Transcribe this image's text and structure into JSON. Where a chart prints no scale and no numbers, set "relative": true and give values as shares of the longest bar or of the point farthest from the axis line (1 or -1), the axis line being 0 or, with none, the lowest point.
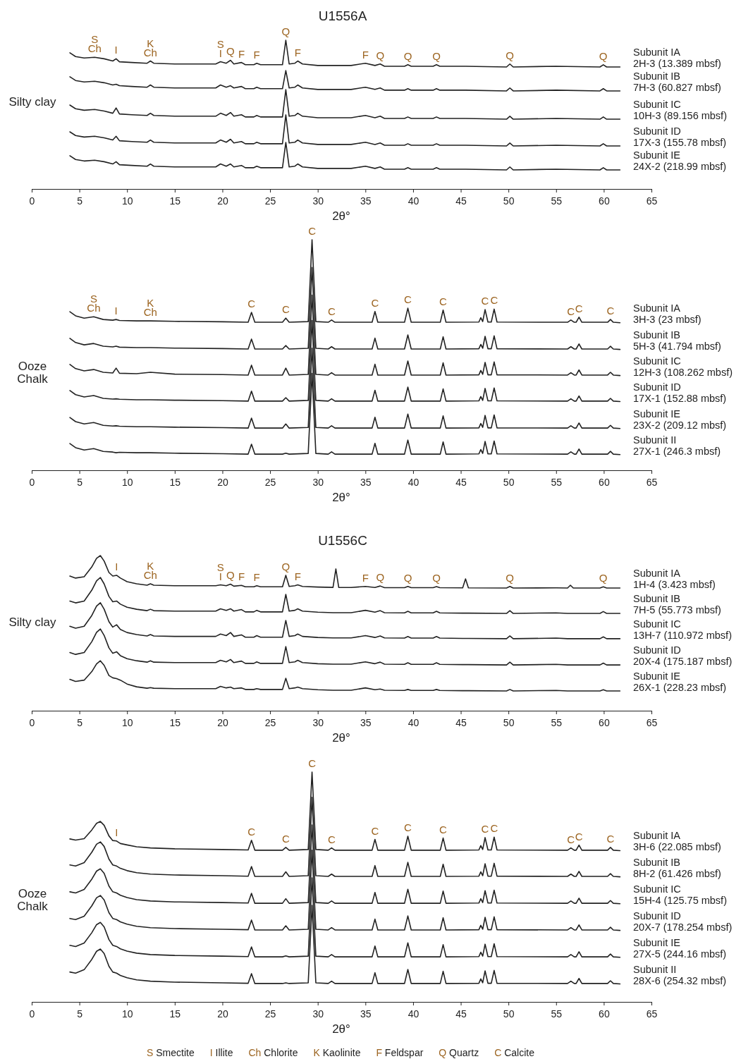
{
  "chart_data": [
    {
      "type": "line",
      "title": "U1556A",
      "xlabel": "2θ°",
      "relative": true,
      "tick_labels": "x",
      "xlim": [
        0,
        65
      ],
      "xticks": [
        0,
        5,
        10,
        15,
        20,
        25,
        30,
        35,
        40,
        45,
        50,
        55,
        60,
        65
      ],
      "x": [
        4,
        4.6,
        5.5,
        6.6,
        7.6,
        8.5,
        8.85,
        9.2,
        10.5,
        12.1,
        12.45,
        12.8,
        15,
        17.8,
        19.3,
        19.8,
        20.4,
        20.85,
        21.2,
        22.0,
        22.4,
        23.3,
        23.6,
        24.0,
        26.3,
        26.65,
        27.0,
        27.6,
        27.9,
        28.4,
        30,
        33.5,
        35.0,
        36.0,
        36.55,
        37,
        39.1,
        39.45,
        39.8,
        42.1,
        42.45,
        42.8,
        45.5,
        49.8,
        50.15,
        50.5,
        55,
        59.6,
        59.95,
        60.3,
        61.7
      ],
      "series": [
        {
          "name": "Subunit IA\n2H-3 (13.389 mbsf)",
          "color": "#222222",
          "values": [
            0.915,
            0.89,
            0.88,
            0.885,
            0.875,
            0.86,
            0.875,
            0.855,
            0.85,
            0.845,
            0.86,
            0.845,
            0.84,
            0.84,
            0.84,
            0.855,
            0.845,
            0.865,
            0.84,
            0.85,
            0.835,
            0.835,
            0.845,
            0.835,
            0.835,
            1,
            0.84,
            0.845,
            0.86,
            0.84,
            0.83,
            0.83,
            0.845,
            0.83,
            0.84,
            0.825,
            0.825,
            0.835,
            0.825,
            0.825,
            0.835,
            0.825,
            0.825,
            0.82,
            0.84,
            0.82,
            0.825,
            0.82,
            0.835,
            0.82,
            0.82
          ]
        },
        {
          "name": "Subunit IB\n7H-3 (60.827 mbsf)",
          "color": "#222222",
          "values": [
            0.754,
            0.729,
            0.719,
            0.724,
            0.714,
            0.699,
            0.704,
            0.694,
            0.689,
            0.684,
            0.699,
            0.684,
            0.679,
            0.679,
            0.679,
            0.699,
            0.684,
            0.694,
            0.679,
            0.689,
            0.674,
            0.674,
            0.684,
            0.674,
            0.674,
            0.796,
            0.679,
            0.684,
            0.699,
            0.679,
            0.669,
            0.669,
            0.684,
            0.669,
            0.679,
            0.664,
            0.664,
            0.674,
            0.664,
            0.664,
            0.674,
            0.664,
            0.664,
            0.659,
            0.679,
            0.659,
            0.664,
            0.659,
            0.674,
            0.659,
            0.659
          ]
        },
        {
          "name": "Subunit IC\n10H-3 (89.156 mbsf)",
          "color": "#222222",
          "values": [
            0.564,
            0.539,
            0.529,
            0.534,
            0.524,
            0.509,
            0.544,
            0.504,
            0.499,
            0.494,
            0.509,
            0.494,
            0.489,
            0.489,
            0.489,
            0.509,
            0.494,
            0.514,
            0.489,
            0.499,
            0.484,
            0.484,
            0.494,
            0.484,
            0.484,
            0.668,
            0.489,
            0.494,
            0.509,
            0.489,
            0.479,
            0.479,
            0.494,
            0.479,
            0.489,
            0.474,
            0.474,
            0.484,
            0.474,
            0.474,
            0.484,
            0.474,
            0.474,
            0.469,
            0.489,
            0.469,
            0.474,
            0.469,
            0.484,
            0.469,
            0.469
          ]
        },
        {
          "name": "Subunit ID\n17X-3 (155.78 mbsf)",
          "color": "#222222",
          "values": [
            0.384,
            0.359,
            0.349,
            0.354,
            0.344,
            0.329,
            0.354,
            0.324,
            0.319,
            0.314,
            0.329,
            0.314,
            0.309,
            0.309,
            0.309,
            0.329,
            0.314,
            0.334,
            0.309,
            0.319,
            0.304,
            0.304,
            0.314,
            0.304,
            0.304,
            0.498,
            0.309,
            0.314,
            0.329,
            0.309,
            0.299,
            0.299,
            0.314,
            0.299,
            0.309,
            0.294,
            0.294,
            0.304,
            0.294,
            0.294,
            0.304,
            0.294,
            0.294,
            0.289,
            0.309,
            0.289,
            0.294,
            0.289,
            0.304,
            0.289,
            0.289
          ]
        },
        {
          "name": "Subunit IE\n24X-2 (218.99 mbsf)",
          "color": "#222222",
          "values": [
            0.223,
            0.198,
            0.188,
            0.193,
            0.183,
            0.168,
            0.183,
            0.163,
            0.158,
            0.153,
            0.168,
            0.153,
            0.148,
            0.148,
            0.148,
            0.168,
            0.153,
            0.168,
            0.148,
            0.158,
            0.143,
            0.143,
            0.153,
            0.143,
            0.143,
            0.313,
            0.148,
            0.153,
            0.168,
            0.148,
            0.138,
            0.138,
            0.153,
            0.138,
            0.148,
            0.133,
            0.133,
            0.143,
            0.133,
            0.133,
            0.143,
            0.133,
            0.133,
            0.128,
            0.148,
            0.128,
            0.133,
            0.128,
            0.143,
            0.128,
            0.128
          ]
        }
      ],
      "annotations": [
        "Silty clay",
        {
          "text": "S\nCh",
          "x": 6.6,
          "y": 0.885
        },
        {
          "text": "I",
          "x": 8.85,
          "y": 0.875
        },
        {
          "text": "K\nCh",
          "x": 12.45,
          "y": 0.86
        },
        {
          "text": "S\nI",
          "x": 19.8,
          "y": 0.855
        },
        {
          "text": "Q",
          "x": 20.85,
          "y": 0.865
        },
        {
          "text": "F",
          "x": 22.0,
          "y": 0.85
        },
        {
          "text": "F",
          "x": 23.6,
          "y": 0.845
        },
        {
          "text": "Q",
          "x": 26.65,
          "y": 1
        },
        {
          "text": "F",
          "x": 27.9,
          "y": 0.86
        },
        {
          "text": "F",
          "x": 35.0,
          "y": 0.845
        },
        {
          "text": "Q",
          "x": 36.55,
          "y": 0.84
        },
        {
          "text": "Q",
          "x": 39.45,
          "y": 0.835
        },
        {
          "text": "Q",
          "x": 42.45,
          "y": 0.835
        },
        {
          "text": "Q",
          "x": 50.15,
          "y": 0.84
        },
        {
          "text": "Q",
          "x": 59.95,
          "y": 0.835
        }
      ]
    },
    {
      "type": "line",
      "xlabel": "2θ°",
      "relative": true,
      "tick_labels": "x",
      "xlim": [
        0,
        65
      ],
      "xticks": [
        0,
        5,
        10,
        15,
        20,
        25,
        30,
        35,
        40,
        45,
        50,
        55,
        60,
        65
      ],
      "x": [
        4,
        4.6,
        5.5,
        6.5,
        7.5,
        8.5,
        8.85,
        9.2,
        11,
        12.45,
        15,
        20,
        22.7,
        23.05,
        23.4,
        26.3,
        26.65,
        27,
        29.0,
        29.4,
        29.8,
        31.1,
        31.45,
        31.8,
        35.7,
        36.0,
        36.3,
        39.1,
        39.45,
        39.8,
        42.85,
        43.15,
        43.45,
        46.9,
        47.1,
        47.3,
        47.55,
        47.85,
        48.2,
        48.5,
        48.8,
        56.2,
        56.55,
        56.9,
        57.1,
        57.4,
        57.7,
        60.4,
        60.7,
        61.0,
        61.7
      ],
      "series": [
        {
          "name": "Subunit IA\n3H-3 (23 mbsf)",
          "color": "#222222",
          "values": [
            0.688,
            0.67,
            0.66,
            0.666,
            0.654,
            0.651,
            0.654,
            0.65,
            0.648,
            0.648,
            0.646,
            0.644,
            0.642,
            0.685,
            0.642,
            0.642,
            0.66,
            0.642,
            0.645,
            1,
            0.645,
            0.642,
            0.652,
            0.642,
            0.642,
            0.689,
            0.642,
            0.642,
            0.703,
            0.642,
            0.642,
            0.695,
            0.642,
            0.643,
            0.662,
            0.645,
            0.697,
            0.643,
            0.643,
            0.699,
            0.643,
            0.642,
            0.652,
            0.642,
            0.642,
            0.664,
            0.642,
            0.642,
            0.654,
            0.642,
            0.64
          ]
        },
        {
          "name": "Subunit IB\n5H-3 (41.794 mbsf)",
          "color": "#222222",
          "values": [
            0.572,
            0.554,
            0.544,
            0.55,
            0.538,
            0.535,
            0.538,
            0.534,
            0.532,
            0.532,
            0.53,
            0.528,
            0.526,
            0.569,
            0.526,
            0.526,
            0.541,
            0.526,
            0.529,
            0.88,
            0.529,
            0.526,
            0.536,
            0.526,
            0.526,
            0.573,
            0.526,
            0.526,
            0.587,
            0.526,
            0.526,
            0.579,
            0.526,
            0.527,
            0.546,
            0.529,
            0.581,
            0.527,
            0.527,
            0.583,
            0.527,
            0.526,
            0.536,
            0.526,
            0.526,
            0.548,
            0.526,
            0.526,
            0.538,
            0.526,
            0.524
          ]
        },
        {
          "name": "Subunit IC\n12H-3 (108.262 mbsf)",
          "color": "#222222",
          "values": [
            0.459,
            0.441,
            0.431,
            0.437,
            0.425,
            0.422,
            0.443,
            0.421,
            0.419,
            0.425,
            0.417,
            0.415,
            0.413,
            0.456,
            0.413,
            0.413,
            0.443,
            0.413,
            0.416,
            0.76,
            0.416,
            0.413,
            0.423,
            0.413,
            0.413,
            0.46,
            0.413,
            0.413,
            0.474,
            0.413,
            0.413,
            0.466,
            0.413,
            0.414,
            0.433,
            0.416,
            0.468,
            0.414,
            0.414,
            0.47,
            0.414,
            0.413,
            0.423,
            0.413,
            0.413,
            0.435,
            0.413,
            0.413,
            0.425,
            0.413,
            0.411
          ]
        },
        {
          "name": "Subunit ID\n17X-1 (152.88 mbsf)",
          "color": "#222222",
          "values": [
            0.346,
            0.328,
            0.318,
            0.324,
            0.312,
            0.309,
            0.31,
            0.308,
            0.306,
            0.306,
            0.304,
            0.302,
            0.3,
            0.343,
            0.3,
            0.3,
            0.315,
            0.3,
            0.303,
            0.65,
            0.303,
            0.3,
            0.31,
            0.3,
            0.3,
            0.347,
            0.3,
            0.3,
            0.361,
            0.3,
            0.3,
            0.353,
            0.3,
            0.301,
            0.32,
            0.303,
            0.355,
            0.301,
            0.301,
            0.357,
            0.301,
            0.3,
            0.31,
            0.3,
            0.3,
            0.322,
            0.3,
            0.3,
            0.312,
            0.3,
            0.298
          ]
        },
        {
          "name": "Subunit IE\n23X-2 (209.12 mbsf)",
          "color": "#222222",
          "values": [
            0.229,
            0.211,
            0.201,
            0.207,
            0.195,
            0.192,
            0.193,
            0.191,
            0.189,
            0.189,
            0.187,
            0.185,
            0.183,
            0.226,
            0.183,
            0.183,
            0.201,
            0.183,
            0.186,
            0.53,
            0.186,
            0.183,
            0.193,
            0.183,
            0.183,
            0.23,
            0.183,
            0.183,
            0.244,
            0.183,
            0.183,
            0.236,
            0.183,
            0.184,
            0.203,
            0.186,
            0.238,
            0.184,
            0.184,
            0.24,
            0.184,
            0.183,
            0.193,
            0.183,
            0.183,
            0.205,
            0.183,
            0.183,
            0.195,
            0.183,
            0.181
          ]
        },
        {
          "name": "Subunit II\n27X-1 (246.3 mbsf)",
          "color": "#222222",
          "values": [
            0.116,
            0.098,
            0.088,
            0.094,
            0.082,
            0.079,
            0.076,
            0.078,
            0.076,
            0.076,
            0.074,
            0.072,
            0.07,
            0.113,
            0.07,
            0.07,
            0.074,
            0.07,
            0.073,
            0.42,
            0.073,
            0.07,
            0.08,
            0.07,
            0.07,
            0.117,
            0.07,
            0.07,
            0.131,
            0.07,
            0.07,
            0.123,
            0.07,
            0.071,
            0.09,
            0.073,
            0.125,
            0.071,
            0.071,
            0.127,
            0.071,
            0.07,
            0.08,
            0.07,
            0.07,
            0.092,
            0.07,
            0.07,
            0.082,
            0.07,
            0.068
          ]
        }
      ],
      "annotations": [
        "Ooze\nChalk",
        {
          "text": "S\nCh",
          "x": 6.5,
          "y": 0.666
        },
        {
          "text": "I",
          "x": 8.85,
          "y": 0.654
        },
        {
          "text": "K\nCh",
          "x": 12.45,
          "y": 0.648
        },
        {
          "text": "C",
          "x": 23.05,
          "y": 0.685
        },
        {
          "text": "C",
          "x": 26.65,
          "y": 0.66
        },
        {
          "text": "C",
          "x": 29.4,
          "y": 1
        },
        {
          "text": "C",
          "x": 31.45,
          "y": 0.652
        },
        {
          "text": "C",
          "x": 36.0,
          "y": 0.689
        },
        {
          "text": "C",
          "x": 39.45,
          "y": 0.703
        },
        {
          "text": "C",
          "x": 43.15,
          "y": 0.695
        },
        {
          "text": "C",
          "x": 47.55,
          "y": 0.697
        },
        {
          "text": "C",
          "x": 48.5,
          "y": 0.699
        },
        {
          "text": "C",
          "x": 56.55,
          "y": 0.652
        },
        {
          "text": "C",
          "x": 57.4,
          "y": 0.664
        },
        {
          "text": "C",
          "x": 60.7,
          "y": 0.654
        }
      ]
    },
    {
      "type": "line",
      "title": "U1556C",
      "xlabel": "2θ°",
      "relative": true,
      "tick_labels": "x",
      "xlim": [
        0,
        65
      ],
      "xticks": [
        0,
        5,
        10,
        15,
        20,
        25,
        30,
        35,
        40,
        45,
        50,
        55,
        60,
        65
      ],
      "x": [
        4,
        4.6,
        5.5,
        6.3,
        6.8,
        7.2,
        7.6,
        8.1,
        8.5,
        8.9,
        9.3,
        10,
        11,
        12.1,
        12.45,
        12.8,
        15,
        17.8,
        19.3,
        19.8,
        20.4,
        20.85,
        21.2,
        22.0,
        22.4,
        23.3,
        23.6,
        24.0,
        26.3,
        26.65,
        27.0,
        27.6,
        27.9,
        28.4,
        30,
        31.6,
        31.9,
        32.2,
        33.5,
        35.0,
        36.0,
        36.55,
        37,
        39.1,
        39.45,
        39.8,
        42.1,
        42.45,
        42.8,
        45.2,
        45.5,
        45.8,
        49.8,
        50.15,
        50.5,
        55,
        56.2,
        56.5,
        56.8,
        59.6,
        59.95,
        60.3,
        61.7
      ],
      "series": [
        {
          "name": "Subunit IA\n1H-4 (3.423 mbsf)",
          "color": "#222222",
          "values": [
            0.868,
            0.855,
            0.864,
            0.927,
            0.982,
            1,
            0.964,
            0.891,
            0.868,
            0.873,
            0.855,
            0.832,
            0.818,
            0.809,
            0.818,
            0.809,
            0.806,
            0.806,
            0.806,
            0.811,
            0.806,
            0.816,
            0.803,
            0.808,
            0.799,
            0.799,
            0.806,
            0.799,
            0.799,
            0.873,
            0.801,
            0.806,
            0.811,
            0.801,
            0.797,
            0.795,
            0.914,
            0.795,
            0.794,
            0.801,
            0.794,
            0.804,
            0.793,
            0.793,
            0.801,
            0.793,
            0.793,
            0.8,
            0.793,
            0.792,
            0.85,
            0.792,
            0.791,
            0.801,
            0.791,
            0.792,
            0.791,
            0.809,
            0.791,
            0.791,
            0.799,
            0.791,
            0.791
          ]
        },
        {
          "name": "Subunit IB\n7H-5 (55.773 mbsf)",
          "color": "#222222",
          "values": [
            0.707,
            0.695,
            0.707,
            0.777,
            0.837,
            0.859,
            0.817,
            0.737,
            0.702,
            0.707,
            0.687,
            0.667,
            0.654,
            0.645,
            0.654,
            0.645,
            0.642,
            0.642,
            0.642,
            0.657,
            0.647,
            0.657,
            0.642,
            0.652,
            0.637,
            0.637,
            0.647,
            0.637,
            0.637,
            0.75,
            0.642,
            0.647,
            0.657,
            0.642,
            0.635,
            0.632,
            0.632,
            0.632,
            0.632,
            0.647,
            0.635,
            0.645,
            0.632,
            0.631,
            0.641,
            0.631,
            0.631,
            0.641,
            0.631,
            0.629,
            0.629,
            0.629,
            0.627,
            0.645,
            0.627,
            0.631,
            0.627,
            0.627,
            0.627,
            0.627,
            0.639,
            0.627,
            0.627
          ]
        },
        {
          "name": "Subunit IC\n13H-7 (110.972 mbsf)",
          "color": "#222222",
          "values": [
            0.544,
            0.532,
            0.544,
            0.614,
            0.674,
            0.696,
            0.654,
            0.574,
            0.539,
            0.554,
            0.524,
            0.504,
            0.491,
            0.482,
            0.491,
            0.482,
            0.479,
            0.479,
            0.479,
            0.494,
            0.484,
            0.504,
            0.479,
            0.489,
            0.474,
            0.474,
            0.484,
            0.474,
            0.474,
            0.582,
            0.479,
            0.484,
            0.494,
            0.479,
            0.472,
            0.469,
            0.469,
            0.469,
            0.469,
            0.484,
            0.472,
            0.482,
            0.469,
            0.468,
            0.478,
            0.468,
            0.468,
            0.478,
            0.468,
            0.466,
            0.466,
            0.466,
            0.464,
            0.482,
            0.464,
            0.468,
            0.464,
            0.464,
            0.464,
            0.464,
            0.476,
            0.464,
            0.464
          ]
        },
        {
          "name": "Subunit ID\n20X-4 (175.187 mbsf)",
          "color": "#222222",
          "values": [
            0.375,
            0.363,
            0.375,
            0.445,
            0.505,
            0.527,
            0.485,
            0.405,
            0.37,
            0.38,
            0.355,
            0.335,
            0.322,
            0.313,
            0.322,
            0.313,
            0.31,
            0.31,
            0.31,
            0.325,
            0.315,
            0.33,
            0.31,
            0.32,
            0.305,
            0.305,
            0.315,
            0.305,
            0.305,
            0.413,
            0.31,
            0.315,
            0.325,
            0.31,
            0.303,
            0.3,
            0.3,
            0.3,
            0.3,
            0.315,
            0.303,
            0.313,
            0.3,
            0.299,
            0.309,
            0.299,
            0.299,
            0.309,
            0.299,
            0.297,
            0.297,
            0.297,
            0.295,
            0.313,
            0.295,
            0.299,
            0.295,
            0.295,
            0.295,
            0.295,
            0.307,
            0.295,
            0.295
          ]
        },
        {
          "name": "Subunit IE\n26X-1 (228.23 mbsf)",
          "color": "#222222",
          "values": [
            0.202,
            0.189,
            0.197,
            0.252,
            0.302,
            0.322,
            0.292,
            0.227,
            0.212,
            0.207,
            0.197,
            0.172,
            0.154,
            0.145,
            0.149,
            0.145,
            0.142,
            0.142,
            0.142,
            0.157,
            0.147,
            0.152,
            0.142,
            0.147,
            0.137,
            0.137,
            0.142,
            0.137,
            0.137,
            0.209,
            0.142,
            0.147,
            0.152,
            0.142,
            0.135,
            0.132,
            0.132,
            0.132,
            0.132,
            0.147,
            0.135,
            0.14,
            0.132,
            0.131,
            0.137,
            0.131,
            0.131,
            0.137,
            0.131,
            0.129,
            0.129,
            0.129,
            0.127,
            0.137,
            0.127,
            0.131,
            0.127,
            0.127,
            0.127,
            0.127,
            0.135,
            0.127,
            0.127
          ]
        }
      ],
      "annotations": [
        "Silty clay",
        {
          "text": "I",
          "x": 8.9,
          "y": 0.873
        },
        {
          "text": "K\nCh",
          "x": 12.45,
          "y": 0.818
        },
        {
          "text": "S\nI",
          "x": 19.8,
          "y": 0.811
        },
        {
          "text": "Q",
          "x": 20.85,
          "y": 0.816
        },
        {
          "text": "F",
          "x": 22.0,
          "y": 0.808
        },
        {
          "text": "F",
          "x": 23.6,
          "y": 0.806
        },
        {
          "text": "Q",
          "x": 26.65,
          "y": 0.873
        },
        {
          "text": "F",
          "x": 27.9,
          "y": 0.811
        },
        {
          "text": "F",
          "x": 35.0,
          "y": 0.801
        },
        {
          "text": "Q",
          "x": 36.55,
          "y": 0.804
        },
        {
          "text": "Q",
          "x": 39.45,
          "y": 0.801
        },
        {
          "text": "Q",
          "x": 42.45,
          "y": 0.8
        },
        {
          "text": "Q",
          "x": 50.15,
          "y": 0.801
        },
        {
          "text": "Q",
          "x": 59.95,
          "y": 0.799
        }
      ]
    },
    {
      "type": "line",
      "xlabel": "2θ°",
      "relative": true,
      "tick_labels": "x",
      "xlim": [
        0,
        65
      ],
      "xticks": [
        0,
        5,
        10,
        15,
        20,
        25,
        30,
        35,
        40,
        45,
        50,
        55,
        60,
        65
      ],
      "x": [
        4,
        4.6,
        5.5,
        6.3,
        6.8,
        7.2,
        7.6,
        8.1,
        8.5,
        8.9,
        9.3,
        10,
        11,
        12.45,
        15,
        20,
        22.7,
        23.05,
        23.4,
        26.3,
        26.65,
        27,
        29.0,
        29.4,
        29.8,
        31.1,
        31.45,
        31.8,
        35.7,
        36.0,
        36.3,
        39.1,
        39.45,
        39.8,
        42.85,
        43.15,
        43.45,
        46.9,
        47.1,
        47.3,
        47.55,
        47.85,
        48.2,
        48.5,
        48.8,
        56.2,
        56.55,
        56.9,
        57.1,
        57.4,
        57.7,
        60.4,
        60.7,
        61.0,
        61.7
      ],
      "series": [
        {
          "name": "Subunit IA\n3H-6 (22.085 mbsf)",
          "color": "#222222",
          "values": [
            0.709,
            0.704,
            0.71,
            0.748,
            0.777,
            0.785,
            0.768,
            0.722,
            0.702,
            0.7,
            0.689,
            0.683,
            0.675,
            0.67,
            0.666,
            0.663,
            0.661,
            0.703,
            0.66,
            0.66,
            0.672,
            0.66,
            0.663,
            1,
            0.663,
            0.66,
            0.67,
            0.66,
            0.66,
            0.707,
            0.66,
            0.66,
            0.721,
            0.66,
            0.66,
            0.713,
            0.66,
            0.661,
            0.68,
            0.663,
            0.715,
            0.661,
            0.661,
            0.717,
            0.661,
            0.66,
            0.67,
            0.66,
            0.66,
            0.682,
            0.66,
            0.66,
            0.672,
            0.66,
            0.658
          ]
        },
        {
          "name": "Subunit IB\n8H-2 (61.426 mbsf)",
          "color": "#222222",
          "values": [
            0.596,
            0.591,
            0.606,
            0.651,
            0.686,
            0.696,
            0.676,
            0.621,
            0.596,
            0.591,
            0.581,
            0.571,
            0.562,
            0.556,
            0.552,
            0.549,
            0.547,
            0.589,
            0.546,
            0.546,
            0.566,
            0.546,
            0.549,
            0.89,
            0.549,
            0.546,
            0.556,
            0.546,
            0.546,
            0.593,
            0.546,
            0.546,
            0.607,
            0.546,
            0.546,
            0.599,
            0.546,
            0.547,
            0.566,
            0.549,
            0.601,
            0.547,
            0.547,
            0.603,
            0.547,
            0.546,
            0.556,
            0.546,
            0.546,
            0.568,
            0.546,
            0.546,
            0.558,
            0.546,
            0.544
          ]
        },
        {
          "name": "Subunit IC\n15H-4 (125.75 mbsf)",
          "color": "#222222",
          "values": [
            0.479,
            0.474,
            0.489,
            0.534,
            0.569,
            0.579,
            0.559,
            0.504,
            0.479,
            0.474,
            0.464,
            0.454,
            0.445,
            0.439,
            0.435,
            0.432,
            0.43,
            0.472,
            0.429,
            0.429,
            0.449,
            0.429,
            0.432,
            0.77,
            0.432,
            0.429,
            0.439,
            0.429,
            0.429,
            0.476,
            0.429,
            0.429,
            0.49,
            0.429,
            0.429,
            0.482,
            0.429,
            0.43,
            0.449,
            0.432,
            0.484,
            0.43,
            0.43,
            0.486,
            0.43,
            0.429,
            0.439,
            0.429,
            0.429,
            0.451,
            0.429,
            0.429,
            0.441,
            0.429,
            0.427
          ]
        },
        {
          "name": "Subunit ID\n20X-7 (178.254 mbsf)",
          "color": "#222222",
          "values": [
            0.363,
            0.358,
            0.373,
            0.418,
            0.453,
            0.463,
            0.443,
            0.388,
            0.363,
            0.358,
            0.348,
            0.338,
            0.329,
            0.323,
            0.319,
            0.316,
            0.314,
            0.356,
            0.313,
            0.313,
            0.331,
            0.313,
            0.316,
            0.66,
            0.316,
            0.313,
            0.323,
            0.313,
            0.313,
            0.36,
            0.313,
            0.313,
            0.374,
            0.313,
            0.313,
            0.366,
            0.313,
            0.314,
            0.333,
            0.316,
            0.368,
            0.314,
            0.314,
            0.37,
            0.314,
            0.313,
            0.323,
            0.313,
            0.313,
            0.335,
            0.313,
            0.313,
            0.325,
            0.313,
            0.311
          ]
        },
        {
          "name": "Subunit IE\n27X-5 (244.16 mbsf)",
          "color": "#222222",
          "values": [
            0.246,
            0.241,
            0.256,
            0.301,
            0.336,
            0.346,
            0.326,
            0.271,
            0.246,
            0.241,
            0.231,
            0.221,
            0.212,
            0.206,
            0.202,
            0.199,
            0.197,
            0.239,
            0.196,
            0.196,
            0.2,
            0.196,
            0.199,
            0.54,
            0.199,
            0.196,
            0.206,
            0.196,
            0.196,
            0.243,
            0.196,
            0.196,
            0.257,
            0.196,
            0.196,
            0.249,
            0.196,
            0.197,
            0.216,
            0.199,
            0.251,
            0.197,
            0.197,
            0.253,
            0.197,
            0.196,
            0.206,
            0.196,
            0.196,
            0.218,
            0.196,
            0.196,
            0.208,
            0.196,
            0.194
          ]
        },
        {
          "name": "Subunit II\n28X-6 (254.32 mbsf)",
          "color": "#222222",
          "values": [
            0.13,
            0.125,
            0.14,
            0.185,
            0.22,
            0.23,
            0.21,
            0.155,
            0.13,
            0.125,
            0.115,
            0.105,
            0.096,
            0.09,
            0.086,
            0.083,
            0.081,
            0.123,
            0.08,
            0.08,
            0.083,
            0.08,
            0.083,
            0.42,
            0.083,
            0.08,
            0.09,
            0.08,
            0.08,
            0.127,
            0.08,
            0.08,
            0.141,
            0.08,
            0.08,
            0.133,
            0.08,
            0.081,
            0.1,
            0.083,
            0.135,
            0.081,
            0.081,
            0.137,
            0.081,
            0.08,
            0.09,
            0.08,
            0.08,
            0.102,
            0.08,
            0.08,
            0.092,
            0.08,
            0.078
          ]
        }
      ],
      "annotations": [
        "Ooze\nChalk",
        "S Smectite",
        "I Illite",
        "Ch Chlorite",
        "K Kaolinite",
        "F Feldspar",
        "Q Quartz",
        "C Calcite",
        {
          "text": "I",
          "x": 8.9,
          "y": 0.7
        },
        {
          "text": "C",
          "x": 23.05,
          "y": 0.703
        },
        {
          "text": "C",
          "x": 26.65,
          "y": 0.672
        },
        {
          "text": "C",
          "x": 29.4,
          "y": 1
        },
        {
          "text": "C",
          "x": 31.45,
          "y": 0.67
        },
        {
          "text": "C",
          "x": 36.0,
          "y": 0.707
        },
        {
          "text": "C",
          "x": 39.45,
          "y": 0.721
        },
        {
          "text": "C",
          "x": 43.15,
          "y": 0.713
        },
        {
          "text": "C",
          "x": 47.55,
          "y": 0.715
        },
        {
          "text": "C",
          "x": 48.5,
          "y": 0.717
        },
        {
          "text": "C",
          "x": 56.55,
          "y": 0.67
        },
        {
          "text": "C",
          "x": 57.4,
          "y": 0.682
        },
        {
          "text": "C",
          "x": 60.7,
          "y": 0.672
        }
      ]
    }
  ]
}
